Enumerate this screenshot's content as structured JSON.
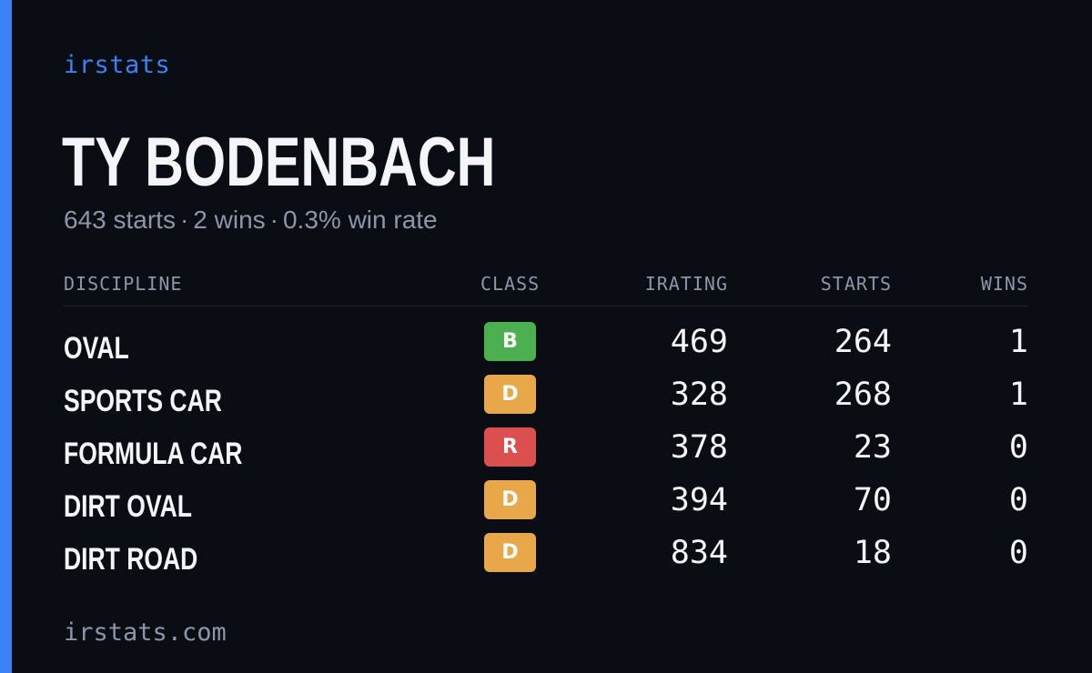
{
  "brand": "irstats",
  "driver": {
    "name": "TY BODENBACH",
    "summary": {
      "starts": "643 starts",
      "wins": "2 wins",
      "win_rate": "0.3% win rate",
      "separator": "·"
    }
  },
  "table": {
    "headers": {
      "discipline": "DISCIPLINE",
      "class": "CLASS",
      "irating": "IRATING",
      "starts": "STARTS",
      "wins": "WINS"
    },
    "rows": [
      {
        "discipline": "OVAL",
        "class": "B",
        "class_color": "#4caf50",
        "irating": "469",
        "starts": "264",
        "wins": "1"
      },
      {
        "discipline": "SPORTS CAR",
        "class": "D",
        "class_color": "#e8a84a",
        "irating": "328",
        "starts": "268",
        "wins": "1"
      },
      {
        "discipline": "FORMULA CAR",
        "class": "R",
        "class_color": "#dc4f4f",
        "irating": "378",
        "starts": "23",
        "wins": "0"
      },
      {
        "discipline": "DIRT OVAL",
        "class": "D",
        "class_color": "#e8a84a",
        "irating": "394",
        "starts": "70",
        "wins": "0"
      },
      {
        "discipline": "DIRT ROAD",
        "class": "D",
        "class_color": "#e8a84a",
        "irating": "834",
        "starts": "18",
        "wins": "0"
      }
    ]
  },
  "footer": "irstats.com",
  "colors": {
    "background": "#0b0d14",
    "accent": "#3b82f6",
    "text_primary": "#f4f5f8",
    "text_muted": "#8d96a8"
  }
}
